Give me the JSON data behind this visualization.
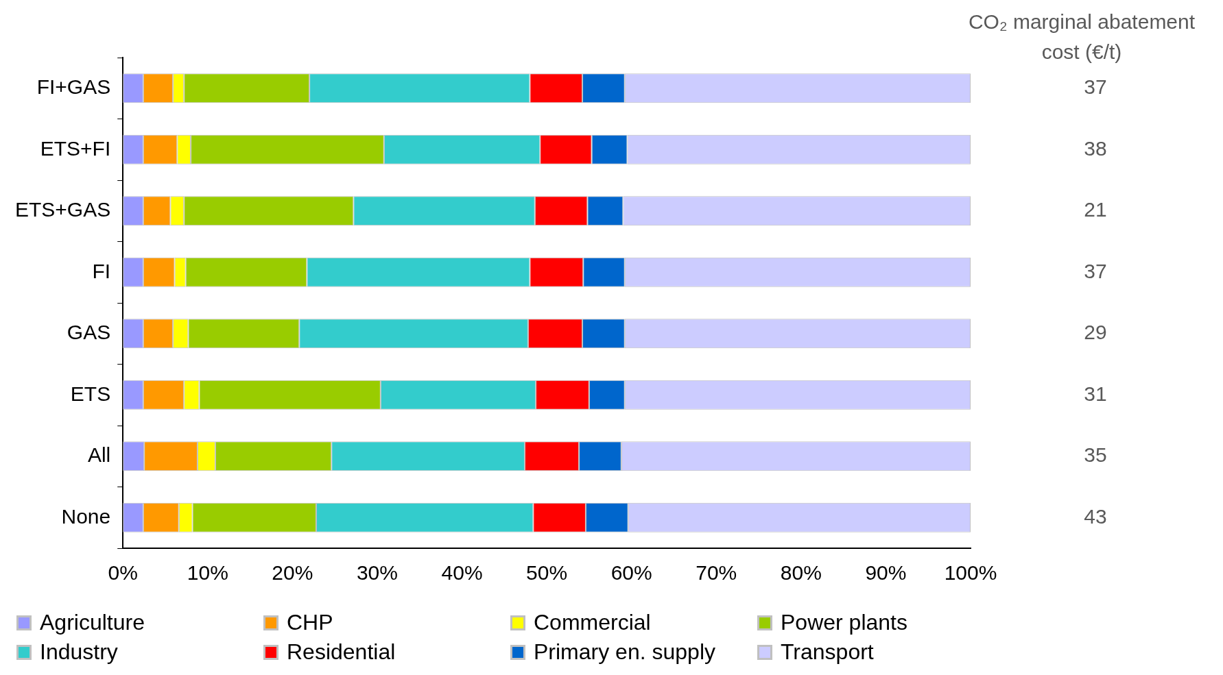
{
  "chart_data": {
    "type": "bar",
    "orientation": "horizontal",
    "stacked": true,
    "categories": [
      "FI+GAS",
      "ETS+FI",
      "ETS+GAS",
      "FI",
      "GAS",
      "ETS",
      "All",
      "None"
    ],
    "series": [
      {
        "name": "Agriculture",
        "color": "#9999ff",
        "values": [
          2.4,
          2.4,
          2.4,
          2.4,
          2.4,
          2.4,
          2.5,
          2.4
        ]
      },
      {
        "name": "CHP",
        "color": "#ff9900",
        "values": [
          3.5,
          4.0,
          3.2,
          3.7,
          3.5,
          4.8,
          6.3,
          4.2
        ]
      },
      {
        "name": "Commercial",
        "color": "#ffff00",
        "values": [
          1.3,
          1.6,
          1.6,
          1.3,
          1.8,
          1.8,
          2.1,
          1.6
        ]
      },
      {
        "name": "Power plants",
        "color": "#99cc00",
        "values": [
          14.8,
          22.8,
          20.0,
          14.3,
          13.1,
          21.4,
          13.7,
          14.6
        ]
      },
      {
        "name": "Industry",
        "color": "#33cccc",
        "values": [
          26.0,
          18.4,
          21.4,
          26.3,
          27.0,
          18.3,
          22.8,
          25.6
        ]
      },
      {
        "name": "Residential",
        "color": "#ff0000",
        "values": [
          6.2,
          6.1,
          6.2,
          6.3,
          6.4,
          6.3,
          6.4,
          6.2
        ]
      },
      {
        "name": "Primary en. supply",
        "color": "#0066cc",
        "values": [
          5.0,
          4.2,
          4.2,
          4.9,
          5.0,
          4.2,
          5.0,
          5.0
        ]
      },
      {
        "name": "Transport",
        "color": "#ccccff",
        "values": [
          40.8,
          40.5,
          41.0,
          40.8,
          40.8,
          40.8,
          41.2,
          40.4
        ]
      }
    ],
    "xlim": [
      0,
      100
    ],
    "xticks": [
      {
        "value": 0,
        "label": "0%"
      },
      {
        "value": 10,
        "label": "10%"
      },
      {
        "value": 20,
        "label": "20%"
      },
      {
        "value": 30,
        "label": "30%"
      },
      {
        "value": 40,
        "label": "40%"
      },
      {
        "value": 50,
        "label": "50%"
      },
      {
        "value": 60,
        "label": "60%"
      },
      {
        "value": 70,
        "label": "70%"
      },
      {
        "value": 80,
        "label": "80%"
      },
      {
        "value": 90,
        "label": "90%"
      },
      {
        "value": 100,
        "label": "100%"
      }
    ],
    "legend": "bottom",
    "annotations": [
      "CO₂ marginal abatement cost (€/t)",
      "37",
      "38",
      "21",
      "37",
      "29",
      "31",
      "35",
      "43"
    ]
  }
}
